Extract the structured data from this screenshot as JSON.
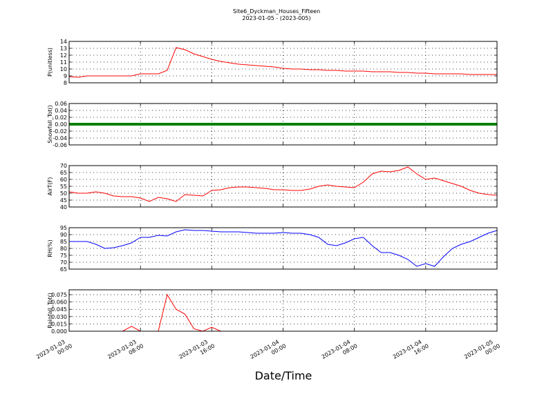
{
  "title": "Site6_Dyckman_Houses_Fifteen",
  "subtitle": "2023-01-05 - (2023-005)",
  "xlabel": "Date/Time",
  "x": [
    "2023-01-03 00:00",
    "2023-01-03 01:00",
    "2023-01-03 02:00",
    "2023-01-03 03:00",
    "2023-01-03 04:00",
    "2023-01-03 05:00",
    "2023-01-03 06:00",
    "2023-01-03 07:00",
    "2023-01-03 08:00",
    "2023-01-03 09:00",
    "2023-01-03 10:00",
    "2023-01-03 11:00",
    "2023-01-03 12:00",
    "2023-01-03 13:00",
    "2023-01-03 14:00",
    "2023-01-03 15:00",
    "2023-01-03 16:00",
    "2023-01-03 17:00",
    "2023-01-03 18:00",
    "2023-01-03 19:00",
    "2023-01-03 20:00",
    "2023-01-03 21:00",
    "2023-01-03 22:00",
    "2023-01-03 23:00",
    "2023-01-04 00:00",
    "2023-01-04 01:00",
    "2023-01-04 02:00",
    "2023-01-04 03:00",
    "2023-01-04 04:00",
    "2023-01-04 05:00",
    "2023-01-04 06:00",
    "2023-01-04 07:00",
    "2023-01-04 08:00",
    "2023-01-04 09:00",
    "2023-01-04 10:00",
    "2023-01-04 11:00",
    "2023-01-04 12:00",
    "2023-01-04 13:00",
    "2023-01-04 14:00",
    "2023-01-04 15:00",
    "2023-01-04 16:00",
    "2023-01-04 17:00",
    "2023-01-04 18:00",
    "2023-01-04 19:00",
    "2023-01-04 20:00",
    "2023-01-04 21:00",
    "2023-01-04 22:00",
    "2023-01-04 23:00",
    "2023-01-05 00:00"
  ],
  "xlim": [
    "2023-01-03 00:00",
    "2023-01-05 00:00"
  ],
  "xticks": [
    "2023-01-03 00:00",
    "2023-01-03 08:00",
    "2023-01-03 16:00",
    "2023-01-04 00:00",
    "2023-01-04 08:00",
    "2023-01-04 16:00",
    "2023-01-05 00:00"
  ],
  "grid": true,
  "chart_data": [
    {
      "type": "line",
      "ylabel": "P(unitless)",
      "ylim": [
        8,
        14
      ],
      "yticks": [
        8,
        9,
        10,
        11,
        12,
        13,
        14
      ],
      "series": [
        {
          "color": "#ff0000",
          "values": [
            8.9,
            8.8,
            9.0,
            9.0,
            9.0,
            9.0,
            9.0,
            9.0,
            9.3,
            9.3,
            9.3,
            9.8,
            13.1,
            12.8,
            12.2,
            11.8,
            11.4,
            11.1,
            10.9,
            10.7,
            10.6,
            10.5,
            10.4,
            10.3,
            10.1,
            10.0,
            10.0,
            9.9,
            9.9,
            9.8,
            9.8,
            9.7,
            9.7,
            9.7,
            9.6,
            9.6,
            9.6,
            9.5,
            9.5,
            9.4,
            9.4,
            9.3,
            9.3,
            9.3,
            9.3,
            9.2,
            9.2,
            9.2,
            9.2
          ]
        }
      ]
    },
    {
      "type": "line",
      "ylabel": "Snowfall_Tot()",
      "ylim": [
        -0.06,
        0.06
      ],
      "yticks": [
        -0.06,
        -0.04,
        -0.02,
        {
          "value": 0,
          "label": "0.00"
        },
        0.02,
        0.04,
        0.06
      ],
      "series": [
        {
          "color": "#008000",
          "values": [
            0,
            0,
            0,
            0,
            0,
            0,
            0,
            0,
            0,
            0,
            0,
            0,
            0,
            0,
            0,
            0,
            0,
            0,
            0,
            0,
            0,
            0,
            0,
            0,
            0,
            0,
            0,
            0,
            0,
            0,
            0,
            0,
            0,
            0,
            0,
            0,
            0,
            0,
            0,
            0,
            0,
            0,
            0,
            0,
            0,
            0,
            0,
            0,
            0
          ]
        }
      ]
    },
    {
      "type": "line",
      "ylabel": "AirT(F)",
      "ylim": [
        40,
        70
      ],
      "yticks": [
        40,
        45,
        50,
        55,
        60,
        65,
        70
      ],
      "series": [
        {
          "color": "#ff0000",
          "values": [
            51,
            50,
            50,
            51,
            50,
            48,
            47.5,
            47.5,
            46.5,
            44,
            47,
            46,
            44,
            49,
            48.5,
            48,
            52,
            52.5,
            54,
            54.5,
            54.5,
            54,
            53.5,
            52.5,
            52.5,
            52,
            52,
            53,
            55,
            56,
            55,
            54.5,
            54,
            58,
            64,
            66,
            65.5,
            66.5,
            69,
            64,
            60,
            61,
            59,
            57,
            55,
            52,
            50,
            49,
            48.5
          ]
        }
      ]
    },
    {
      "type": "line",
      "ylabel": "RH(%)",
      "ylim": [
        65,
        95
      ],
      "yticks": [
        65,
        70,
        75,
        80,
        85,
        90,
        95
      ],
      "series": [
        {
          "color": "#0000ff",
          "values": [
            85,
            85,
            85,
            83,
            80,
            80.5,
            82,
            84,
            88,
            88,
            89.5,
            89,
            92,
            93.5,
            93,
            93,
            92.5,
            92,
            92,
            92,
            91.5,
            91,
            91,
            91,
            91.5,
            91,
            91,
            90,
            88,
            83,
            82,
            84,
            87,
            88,
            82,
            77,
            77,
            75,
            72,
            67,
            69,
            67,
            74,
            80,
            83,
            85,
            88,
            91,
            93
          ]
        }
      ]
    },
    {
      "type": "line",
      "ylabel": "Rainfall_Tot()",
      "ylim": [
        0,
        0.085
      ],
      "yticks": [
        {
          "value": 0,
          "label": "0.000"
        },
        0.015,
        {
          "value": 0.03,
          "label": "0.030"
        },
        0.045,
        {
          "value": 0.06,
          "label": "0.060"
        },
        0.075
      ],
      "series": [
        {
          "color": "#ff0000",
          "values": [
            0,
            0,
            0,
            0,
            0,
            0,
            0,
            0.01,
            0,
            0,
            0,
            0.075,
            0.045,
            0.035,
            0.005,
            0,
            0.008,
            0,
            0,
            0,
            0,
            0,
            0,
            0,
            0,
            0,
            0,
            0,
            0,
            0,
            0,
            0,
            0,
            0,
            0,
            0,
            0,
            0,
            0,
            0,
            0,
            0,
            0,
            0,
            0,
            0,
            0,
            0,
            0
          ]
        }
      ]
    }
  ]
}
